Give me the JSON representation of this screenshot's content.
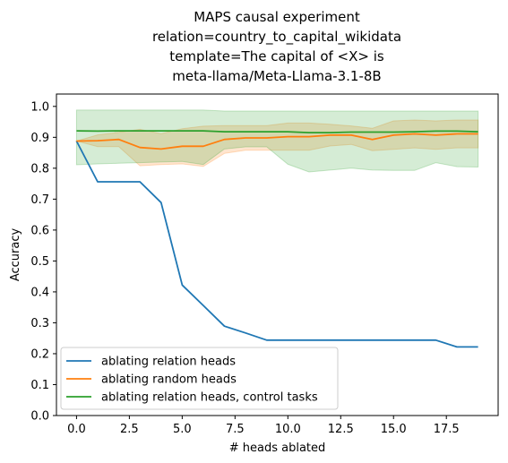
{
  "chart_data": {
    "type": "line",
    "title_lines": [
      "MAPS causal experiment",
      "relation=country_to_capital_wikidata",
      "template=The capital of <X> is",
      "meta-llama/Meta-Llama-3.1-8B"
    ],
    "xlabel": "# heads ablated",
    "ylabel": "Accuracy",
    "xlim": [
      -0.95,
      19.95
    ],
    "ylim": [
      0.0,
      1.04
    ],
    "xticks": [
      0,
      2.5,
      5,
      7.5,
      10,
      12.5,
      15,
      17.5
    ],
    "xtick_labels": [
      "0.0",
      "2.5",
      "5.0",
      "7.5",
      "10.0",
      "12.5",
      "15.0",
      "17.5"
    ],
    "yticks": [
      0.0,
      0.1,
      0.2,
      0.3,
      0.4,
      0.5,
      0.6,
      0.7,
      0.8,
      0.9,
      1.0
    ],
    "ytick_labels": [
      "0.0",
      "0.1",
      "0.2",
      "0.3",
      "0.4",
      "0.5",
      "0.6",
      "0.7",
      "0.8",
      "0.9",
      "1.0"
    ],
    "grid": false,
    "legend_position": "lower-left",
    "x": [
      0,
      1,
      2,
      3,
      4,
      5,
      6,
      7,
      8,
      9,
      10,
      11,
      12,
      13,
      14,
      15,
      16,
      17,
      18,
      19
    ],
    "series": [
      {
        "name": "ablating relation heads",
        "color": "#1f77b4",
        "values": [
          0.888,
          0.756,
          0.756,
          0.756,
          0.689,
          0.422,
          0.356,
          0.289,
          0.267,
          0.244,
          0.244,
          0.244,
          0.244,
          0.244,
          0.244,
          0.244,
          0.244,
          0.244,
          0.222,
          0.222
        ]
      },
      {
        "name": "ablating random heads",
        "color": "#ff7f0e",
        "values": [
          0.888,
          0.889,
          0.893,
          0.867,
          0.862,
          0.871,
          0.871,
          0.893,
          0.898,
          0.898,
          0.902,
          0.902,
          0.907,
          0.907,
          0.893,
          0.907,
          0.911,
          0.907,
          0.911,
          0.911
        ],
        "lower": [
          0.888,
          0.87,
          0.87,
          0.808,
          0.812,
          0.814,
          0.806,
          0.848,
          0.858,
          0.858,
          0.858,
          0.858,
          0.872,
          0.877,
          0.857,
          0.861,
          0.866,
          0.861,
          0.866,
          0.866
        ],
        "upper": [
          0.888,
          0.908,
          0.916,
          0.926,
          0.912,
          0.928,
          0.936,
          0.938,
          0.938,
          0.938,
          0.946,
          0.946,
          0.942,
          0.937,
          0.929,
          0.953,
          0.956,
          0.953,
          0.956,
          0.956
        ]
      },
      {
        "name": "ablating relation heads, control tasks",
        "color": "#2ca02c",
        "values": [
          0.921,
          0.92,
          0.921,
          0.921,
          0.921,
          0.921,
          0.921,
          0.918,
          0.918,
          0.918,
          0.918,
          0.915,
          0.915,
          0.917,
          0.917,
          0.917,
          0.918,
          0.92,
          0.92,
          0.918
        ],
        "lower": [
          0.811,
          0.814,
          0.816,
          0.818,
          0.82,
          0.822,
          0.812,
          0.862,
          0.869,
          0.869,
          0.813,
          0.788,
          0.794,
          0.8,
          0.794,
          0.793,
          0.793,
          0.818,
          0.805,
          0.804
        ],
        "upper": [
          0.988,
          0.988,
          0.988,
          0.988,
          0.988,
          0.988,
          0.988,
          0.985,
          0.985,
          0.985,
          0.985,
          0.985,
          0.985,
          0.985,
          0.985,
          0.985,
          0.985,
          0.985,
          0.985,
          0.985
        ]
      }
    ]
  }
}
